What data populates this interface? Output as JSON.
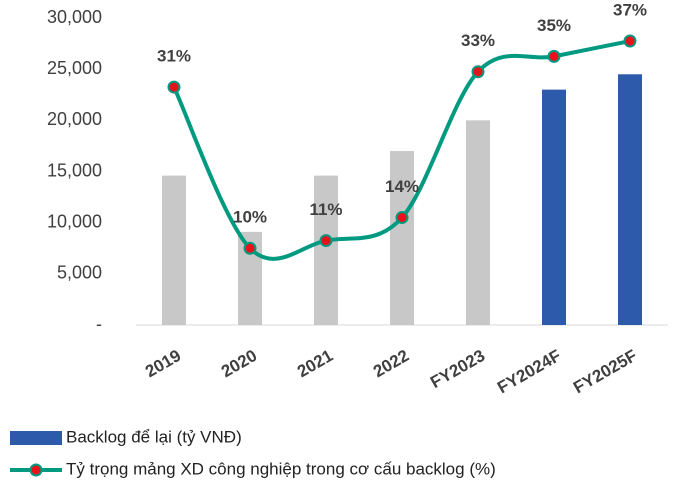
{
  "chart_data": {
    "type": "bar-line",
    "categories": [
      "2019",
      "2020",
      "2021",
      "2022",
      "FY2023",
      "FY2024F",
      "FY2025F"
    ],
    "series": [
      {
        "name": "Backlog để lại (tỷ VNĐ)",
        "type": "bar",
        "color": "#2e5aac",
        "colors": [
          "#c8c8c8",
          "#c8c8c8",
          "#c8c8c8",
          "#c8c8c8",
          "#c8c8c8",
          "#2e5aac",
          "#2e5aac"
        ],
        "values": [
          14600,
          9100,
          14600,
          17000,
          20000,
          23000,
          24500
        ]
      },
      {
        "name": "Tỷ trọng mảng XD công nghiệp trong cơ cấu backlog (%)",
        "type": "line",
        "axis": "y2",
        "color": "#009a80",
        "marker_color": "#e8121a",
        "values": [
          31,
          10,
          11,
          14,
          33,
          35,
          37
        ],
        "value_labels": [
          "31%",
          "10%",
          "11%",
          "14%",
          "33%",
          "35%",
          "37%"
        ]
      }
    ],
    "ylim": [
      0,
      30000
    ],
    "yticks": [
      {
        "value": 0,
        "label": "-"
      },
      {
        "value": 5000,
        "label": "5,000"
      },
      {
        "value": 10000,
        "label": "10,000"
      },
      {
        "value": 15000,
        "label": "15,000"
      },
      {
        "value": 20000,
        "label": "20,000"
      },
      {
        "value": 25000,
        "label": "25,000"
      },
      {
        "value": 30000,
        "label": "30,000"
      }
    ],
    "y2lim": [
      0,
      40
    ]
  }
}
